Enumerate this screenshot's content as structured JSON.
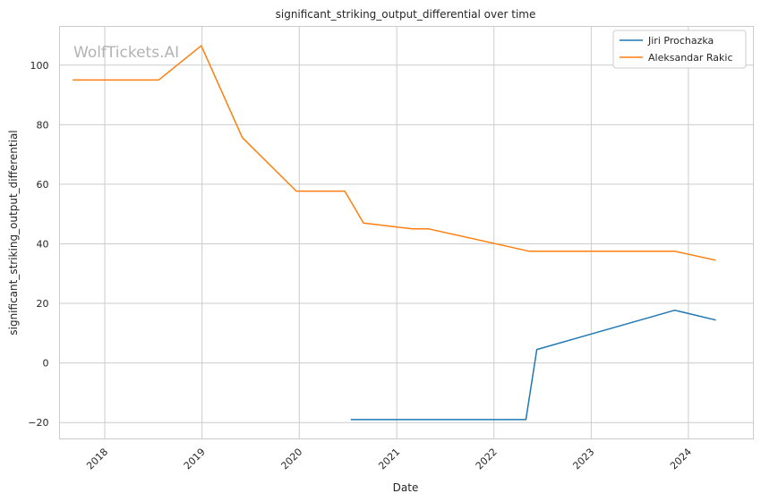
{
  "watermark": "WolfTickets.AI",
  "chart_data": {
    "type": "line",
    "title": "significant_striking_output_differential over time",
    "xlabel": "Date",
    "ylabel": "significant_striking_output_differential",
    "x_ticks": [
      "2018",
      "2019",
      "2020",
      "2021",
      "2022",
      "2023",
      "2024"
    ],
    "y_ticks": [
      -20,
      0,
      20,
      40,
      60,
      80,
      100
    ],
    "xlim": [
      "2017-07-15",
      "2024-09-01"
    ],
    "ylim": [
      -25.5,
      113
    ],
    "grid": true,
    "legend_position": "top-right",
    "series": [
      {
        "name": "Jiri Prochazka",
        "color": "#1f77b4",
        "points": [
          [
            "2020-07-12",
            -19
          ],
          [
            "2022-05-01",
            -19
          ],
          [
            "2022-06-11",
            4.5
          ],
          [
            "2023-11-11",
            17.7
          ],
          [
            "2024-04-13",
            14.4
          ]
        ]
      },
      {
        "name": "Aleksandar Rakic",
        "color": "#ff7f0e",
        "points": [
          [
            "2017-09-02",
            95
          ],
          [
            "2018-07-22",
            95
          ],
          [
            "2018-12-29",
            106.5
          ],
          [
            "2019-06-01",
            75.7
          ],
          [
            "2019-12-21",
            57.7
          ],
          [
            "2020-06-20",
            57.7
          ],
          [
            "2020-08-29",
            47
          ],
          [
            "2021-03-01",
            45
          ],
          [
            "2021-05-01",
            45
          ],
          [
            "2022-05-14",
            37.5
          ],
          [
            "2023-11-11",
            37.5
          ],
          [
            "2024-04-13",
            34.5
          ]
        ]
      }
    ]
  }
}
